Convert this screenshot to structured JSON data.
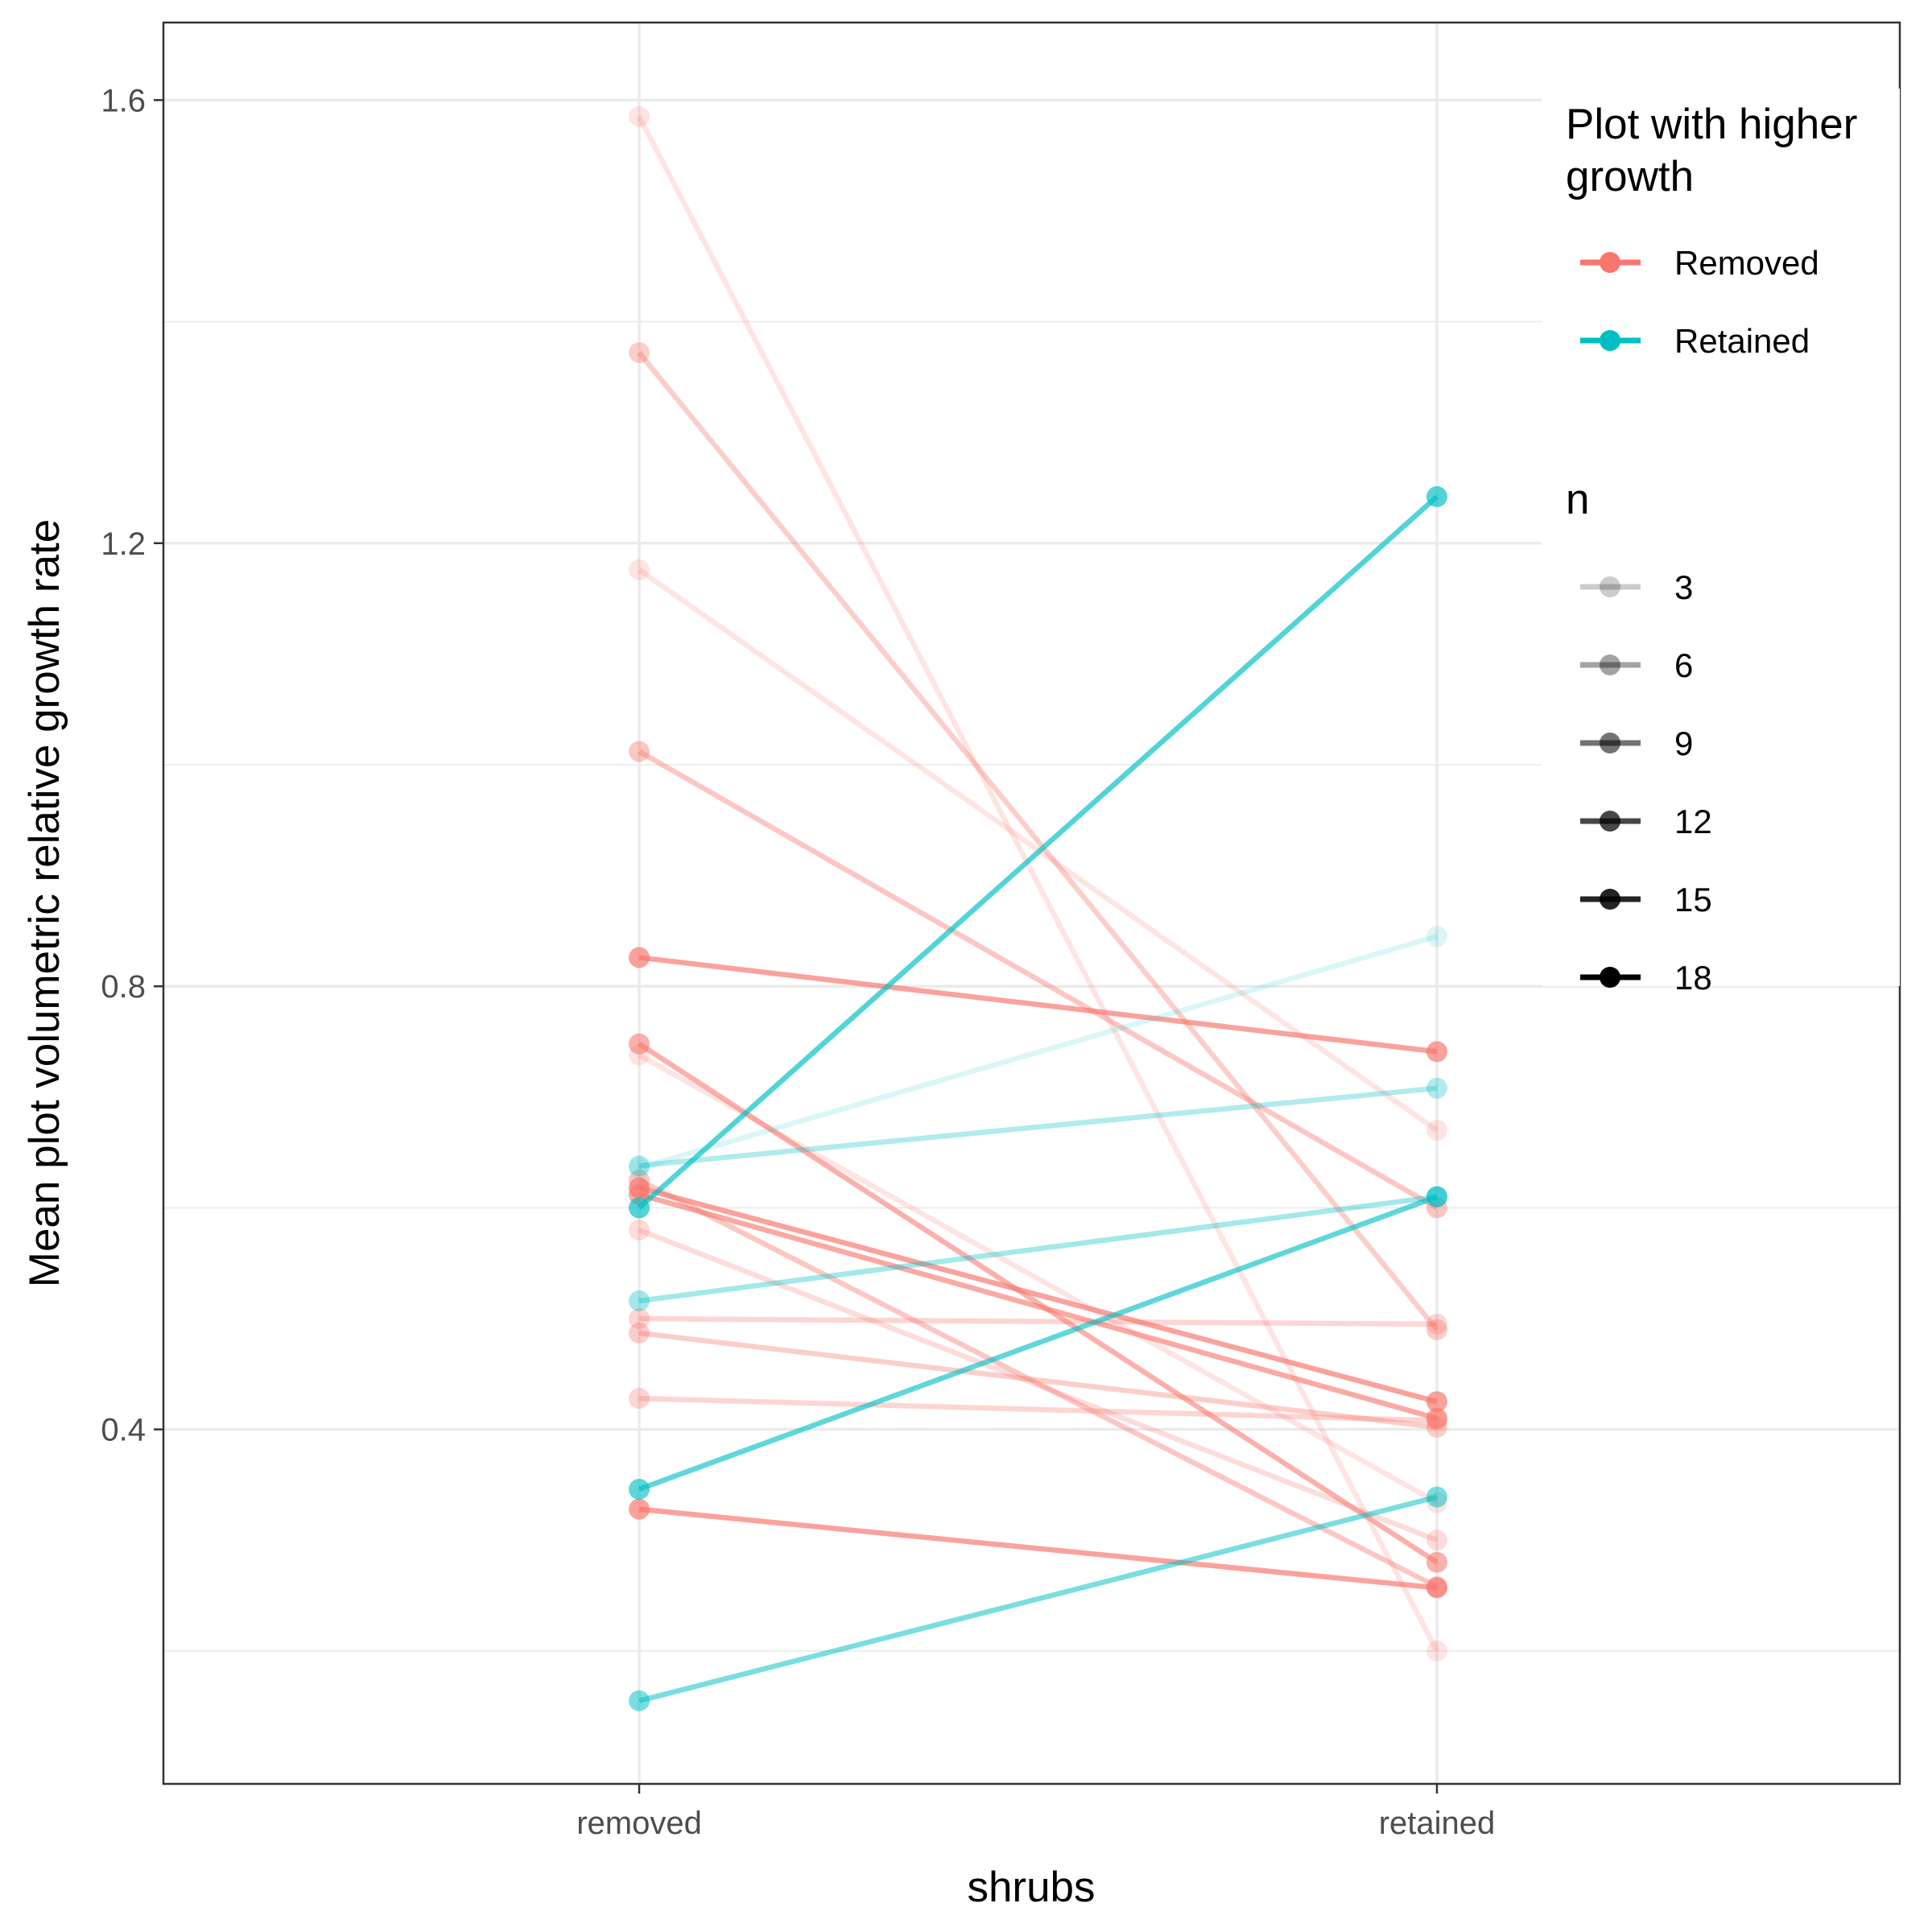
{
  "chart_data": {
    "type": "line",
    "x_categories": [
      "removed",
      "retained"
    ],
    "xlabel": "shrubs",
    "ylabel": "Mean plot volumetric relative growth rate",
    "ylim": [
      0.08,
      1.67
    ],
    "y_ticks": [
      0.4,
      0.8,
      1.2,
      1.6
    ],
    "grid": true,
    "colors": {
      "Removed": "#F8766D",
      "Retained": "#00BFC4"
    },
    "series": [
      {
        "group": "Removed",
        "n": 3,
        "removed": 1.585,
        "retained": 0.2
      },
      {
        "group": "Removed",
        "n": 6,
        "removed": 1.372,
        "retained": 0.49
      },
      {
        "group": "Removed",
        "n": 3,
        "removed": 1.176,
        "retained": 0.67
      },
      {
        "group": "Removed",
        "n": 7,
        "removed": 1.012,
        "retained": 0.6
      },
      {
        "group": "Removed",
        "n": 12,
        "removed": 0.826,
        "retained": 0.741
      },
      {
        "group": "Removed",
        "n": 10,
        "removed": 0.748,
        "retained": 0.28
      },
      {
        "group": "Removed",
        "n": 3,
        "removed": 0.738,
        "retained": 0.334
      },
      {
        "group": "Removed",
        "n": 12,
        "removed": 0.618,
        "retained": 0.425
      },
      {
        "group": "Removed",
        "n": 11,
        "removed": 0.612,
        "retained": 0.41
      },
      {
        "group": "Removed",
        "n": 7,
        "removed": 0.625,
        "retained": 0.258
      },
      {
        "group": "Removed",
        "n": 4,
        "removed": 0.58,
        "retained": 0.3
      },
      {
        "group": "Removed",
        "n": 5,
        "removed": 0.5,
        "retained": 0.495
      },
      {
        "group": "Removed",
        "n": 6,
        "removed": 0.487,
        "retained": 0.402
      },
      {
        "group": "Removed",
        "n": 5,
        "removed": 0.428,
        "retained": 0.408
      },
      {
        "group": "Removed",
        "n": 12,
        "removed": 0.328,
        "retained": 0.257
      },
      {
        "group": "Retained",
        "n": 12,
        "removed": 0.6,
        "retained": 1.242
      },
      {
        "group": "Retained",
        "n": 2,
        "removed": 0.636,
        "retained": 0.845
      },
      {
        "group": "Retained",
        "n": 5,
        "removed": 0.638,
        "retained": 0.708
      },
      {
        "group": "Retained",
        "n": 6,
        "removed": 0.516,
        "retained": 0.61
      },
      {
        "group": "Retained",
        "n": 11,
        "removed": 0.346,
        "retained": 0.61
      },
      {
        "group": "Retained",
        "n": 9,
        "removed": 0.155,
        "retained": 0.339
      }
    ]
  },
  "legend": {
    "color_title_line1": "Plot with higher",
    "color_title_line2": "growth",
    "color_items": [
      {
        "label": "Removed",
        "color": "#F8766D"
      },
      {
        "label": "Retained",
        "color": "#00BFC4"
      }
    ],
    "n_title": "n",
    "n_items": [
      {
        "label": "3",
        "alpha": 0.2
      },
      {
        "label": "6",
        "alpha": 0.36
      },
      {
        "label": "9",
        "alpha": 0.55
      },
      {
        "label": "12",
        "alpha": 0.72
      },
      {
        "label": "15",
        "alpha": 0.86
      },
      {
        "label": "18",
        "alpha": 1.0
      }
    ]
  }
}
